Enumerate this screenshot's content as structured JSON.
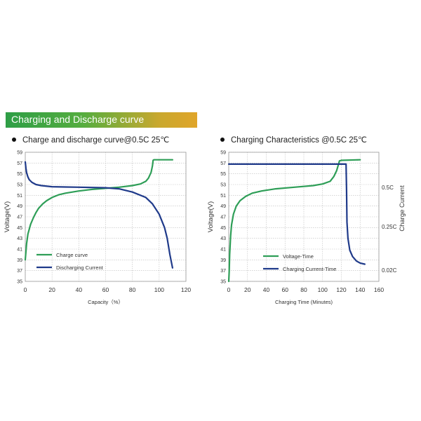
{
  "header": {
    "title": "Charging and Discharge curve"
  },
  "chart_data": [
    {
      "type": "line",
      "title": "Charge and discharge curve@0.5C 25℃",
      "xlabel": "Capacity（%）",
      "ylabel": "Voltage(V)",
      "xlim": [
        0,
        120
      ],
      "ylim": [
        35,
        59
      ],
      "x_ticks": [
        "0",
        "20",
        "40",
        "60",
        "80",
        "100",
        "120"
      ],
      "y_ticks": [
        "35",
        "37",
        "39",
        "41",
        "43",
        "45",
        "47",
        "49",
        "51",
        "53",
        "55",
        "57",
        "59"
      ],
      "grid": true,
      "legend_position": "bottom-left",
      "series": [
        {
          "name": "Charge curve",
          "color": "#2e9e57",
          "points": [
            [
              0,
              39
            ],
            [
              1,
              42
            ],
            [
              2,
              43.8
            ],
            [
              4,
              45.6
            ],
            [
              6,
              46.8
            ],
            [
              8,
              47.8
            ],
            [
              10,
              48.6
            ],
            [
              13,
              49.4
            ],
            [
              16,
              50
            ],
            [
              20,
              50.6
            ],
            [
              25,
              51.1
            ],
            [
              30,
              51.4
            ],
            [
              40,
              51.8
            ],
            [
              50,
              52.1
            ],
            [
              60,
              52.3
            ],
            [
              70,
              52.5
            ],
            [
              80,
              52.8
            ],
            [
              86,
              53.1
            ],
            [
              90,
              53.6
            ],
            [
              92,
              54.2
            ],
            [
              94,
              55.3
            ],
            [
              95,
              56.5
            ],
            [
              95.5,
              57.5
            ],
            [
              96,
              57.6
            ],
            [
              110,
              57.6
            ]
          ]
        },
        {
          "name": "Discharging Current",
          "color": "#1f3a8a",
          "points": [
            [
              0,
              57.2
            ],
            [
              0.5,
              56
            ],
            [
              1,
              55.2
            ],
            [
              2,
              54.4
            ],
            [
              3,
              53.9
            ],
            [
              5,
              53.4
            ],
            [
              8,
              53
            ],
            [
              12,
              52.8
            ],
            [
              20,
              52.6
            ],
            [
              30,
              52.55
            ],
            [
              40,
              52.5
            ],
            [
              50,
              52.45
            ],
            [
              60,
              52.4
            ],
            [
              70,
              52.2
            ],
            [
              80,
              51.6
            ],
            [
              90,
              50.6
            ],
            [
              95,
              49.4
            ],
            [
              100,
              47.5
            ],
            [
              104,
              45
            ],
            [
              106,
              43
            ],
            [
              108,
              40
            ],
            [
              110,
              37.5
            ]
          ]
        }
      ]
    },
    {
      "type": "line",
      "title": "Charging Characteristics @0.5C 25℃",
      "xlabel": "Charging Time (Minutes)",
      "ylabel": "Voltage(V)",
      "y2label": "Charge Current",
      "xlim": [
        0,
        160
      ],
      "ylim": [
        35,
        59
      ],
      "x_ticks": [
        "0",
        "20",
        "40",
        "60",
        "80",
        "100",
        "120",
        "140",
        "160"
      ],
      "y_ticks": [
        "35",
        "37",
        "39",
        "41",
        "43",
        "45",
        "47",
        "49",
        "51",
        "53",
        "55",
        "57",
        "59"
      ],
      "y2_ticks": [
        "0.5C",
        "0.25C",
        "0.02C"
      ],
      "grid": true,
      "legend_position": "bottom-left",
      "series": [
        {
          "name": "Voltage-Time",
          "color": "#2e9e57",
          "points": [
            [
              0,
              35
            ],
            [
              0.5,
              37
            ],
            [
              1,
              40
            ],
            [
              2,
              43.5
            ],
            [
              3,
              45.5
            ],
            [
              5,
              47.5
            ],
            [
              8,
              49
            ],
            [
              12,
              50
            ],
            [
              18,
              50.8
            ],
            [
              25,
              51.4
            ],
            [
              35,
              51.8
            ],
            [
              50,
              52.2
            ],
            [
              70,
              52.5
            ],
            [
              90,
              52.8
            ],
            [
              100,
              53.1
            ],
            [
              108,
              53.6
            ],
            [
              112,
              54.5
            ],
            [
              115,
              55.6
            ],
            [
              117,
              56.8
            ],
            [
              118,
              57.4
            ],
            [
              120,
              57.5
            ],
            [
              140,
              57.6
            ]
          ]
        },
        {
          "name": "Charging Current-Time",
          "color": "#1f3a8a",
          "points": [
            [
              0,
              56.8
            ],
            [
              125,
              56.8
            ],
            [
              125.5,
              52
            ],
            [
              126,
              46
            ],
            [
              127,
              43
            ],
            [
              129,
              40.8
            ],
            [
              132,
              39.6
            ],
            [
              136,
              38.8
            ],
            [
              140,
              38.4
            ],
            [
              145,
              38.2
            ]
          ]
        }
      ]
    }
  ]
}
